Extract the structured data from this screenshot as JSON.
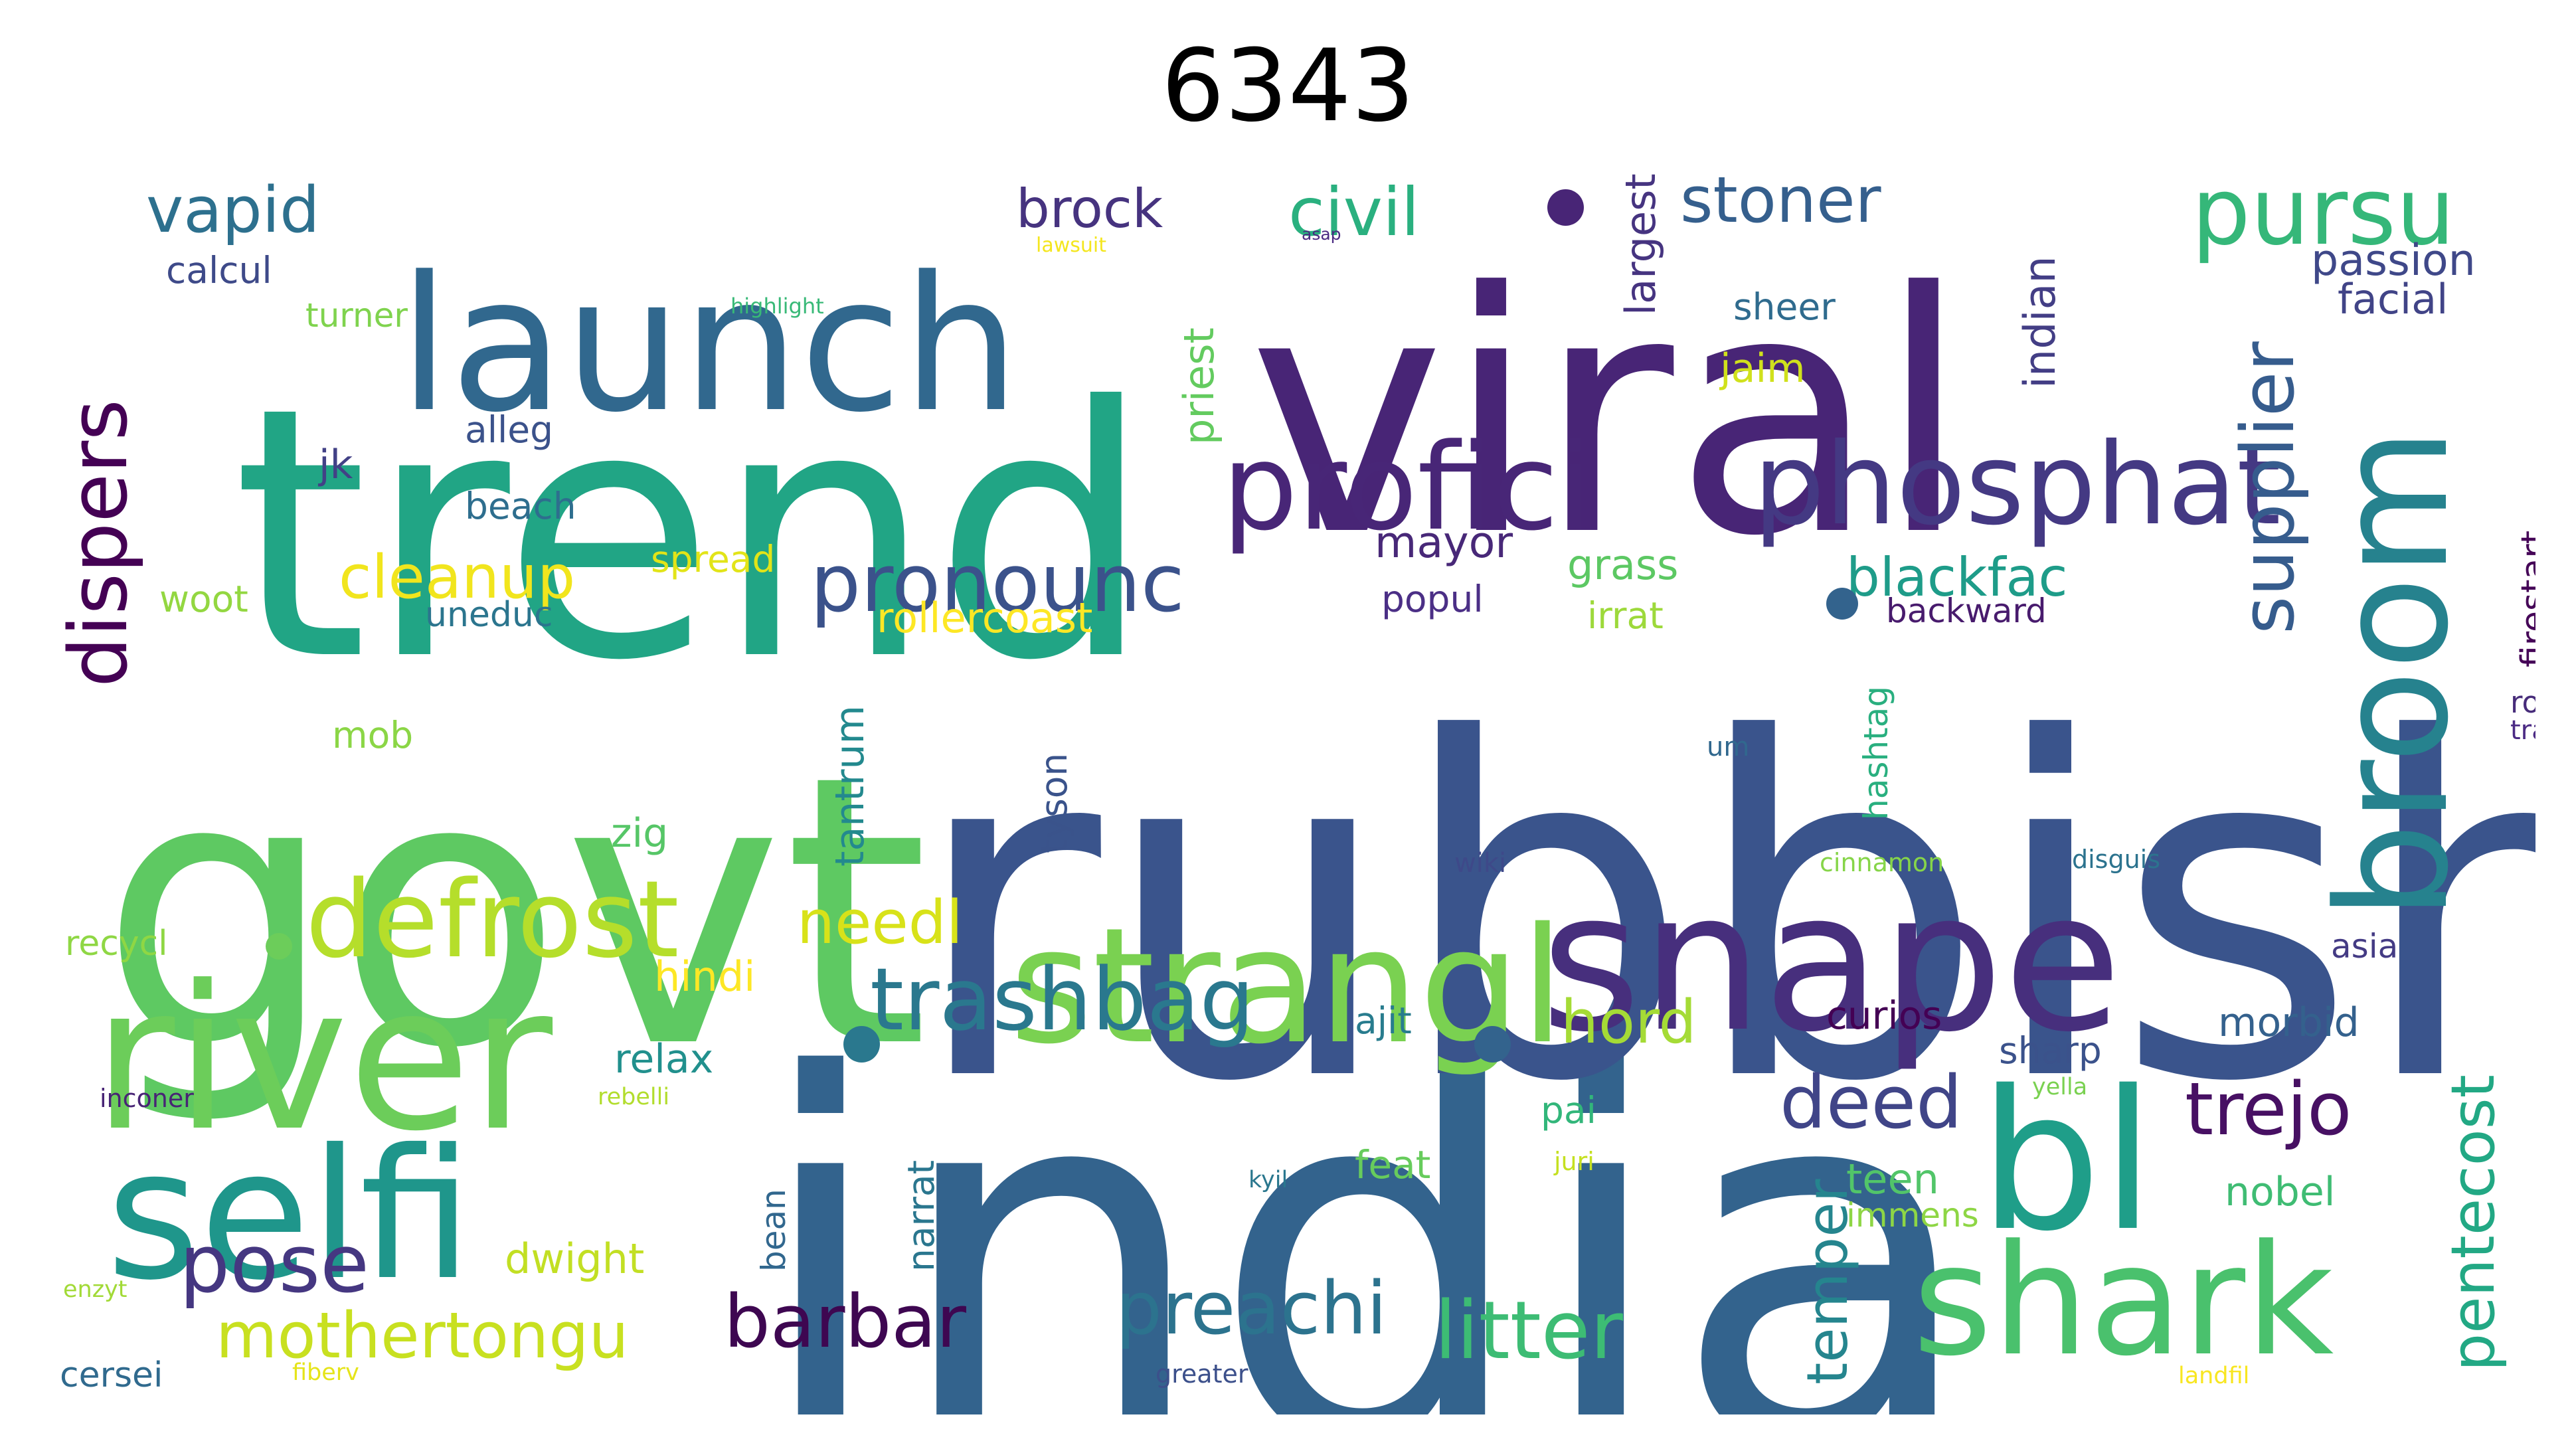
{
  "title": "6343",
  "colors": {
    "background": "#ffffff",
    "palette": "viridis"
  },
  "words": [
    {
      "text": "india",
      "color": "#33638d"
    },
    {
      "text": "rubbish",
      "color": "#3a548c"
    },
    {
      "text": "govt",
      "color": "#5ec962"
    },
    {
      "text": "trend",
      "color": "#21a585"
    },
    {
      "text": "viral",
      "color": "#482576"
    },
    {
      "text": "launch",
      "color": "#31688e"
    },
    {
      "text": "river",
      "color": "#6ccd5a"
    },
    {
      "text": "snape",
      "color": "#472f7d"
    },
    {
      "text": "strangl",
      "color": "#7ad151"
    },
    {
      "text": "selfi",
      "color": "#1f968b"
    },
    {
      "text": "bl",
      "color": "#1f9e89"
    },
    {
      "text": "shark",
      "color": "#4ac16d"
    },
    {
      "text": "broom",
      "color": "#26828e"
    },
    {
      "text": "profici",
      "color": "#482677"
    },
    {
      "text": "phosphat",
      "color": "#443983"
    },
    {
      "text": "defrost",
      "color": "#b5de2b"
    },
    {
      "text": "pursu",
      "color": "#35b779"
    },
    {
      "text": "dispers",
      "color": "#440154"
    },
    {
      "text": "pronounc",
      "color": "#3b528b"
    },
    {
      "text": "trashbag",
      "color": "#2a788e"
    },
    {
      "text": "pose",
      "color": "#453781"
    },
    {
      "text": "barbar",
      "color": "#3e0751"
    },
    {
      "text": "litter",
      "color": "#3dbc74"
    },
    {
      "text": "preachi",
      "color": "#2c738e"
    },
    {
      "text": "mothertongu",
      "color": "#c8e020"
    },
    {
      "text": "trejo",
      "color": "#471063"
    },
    {
      "text": "deed",
      "color": "#404588"
    },
    {
      "text": "pentecost",
      "color": "#22a884"
    },
    {
      "text": "supplier",
      "color": "#365c8d"
    },
    {
      "text": "vapid",
      "color": "#2d708e"
    },
    {
      "text": "civil",
      "color": "#2ab07f"
    },
    {
      "text": "stoner",
      "color": "#355f8d"
    },
    {
      "text": "brock",
      "color": "#46337f"
    },
    {
      "text": "cleanup",
      "color": "#f1e51d"
    },
    {
      "text": "needl",
      "color": "#d8e219"
    },
    {
      "text": "hord",
      "color": "#a5db36"
    },
    {
      "text": "temper",
      "color": "#25858e"
    },
    {
      "text": "blackfac",
      "color": "#1e9c89"
    },
    {
      "text": "passion",
      "color": "#3f4889"
    },
    {
      "text": "facial",
      "color": "#414487"
    },
    {
      "text": "rollercoast",
      "color": "#fde725"
    },
    {
      "text": "mayor",
      "color": "#482878"
    },
    {
      "text": "grass",
      "color": "#5cc863"
    },
    {
      "text": "calcul",
      "color": "#3e4a89"
    },
    {
      "text": "turner",
      "color": "#7fd34e"
    },
    {
      "text": "alleg",
      "color": "#3b528b"
    },
    {
      "text": "beach",
      "color": "#2e6e8e"
    },
    {
      "text": "jk",
      "color": "#424186"
    },
    {
      "text": "woot",
      "color": "#93d741"
    },
    {
      "text": "uneduc",
      "color": "#2b758e"
    },
    {
      "text": "spread",
      "color": "#e2e418"
    },
    {
      "text": "priest",
      "color": "#63cb5f"
    },
    {
      "text": "largest",
      "color": "#463480"
    },
    {
      "text": "indian",
      "color": "#433e85"
    },
    {
      "text": "sheer",
      "color": "#2f6b8e"
    },
    {
      "text": "jaim",
      "color": "#d0e11c"
    },
    {
      "text": "popul",
      "color": "#4b2f86"
    },
    {
      "text": "irrat",
      "color": "#9dd93b"
    },
    {
      "text": "backward",
      "color": "#481b6d"
    },
    {
      "text": "firestart",
      "color": "#450457"
    },
    {
      "text": "roman",
      "color": "#472c7a"
    },
    {
      "text": "trail",
      "color": "#4b2a84"
    },
    {
      "text": "tantrum",
      "color": "#23898e"
    },
    {
      "text": "tyson",
      "color": "#3a538b"
    },
    {
      "text": "hashtag",
      "color": "#29af7f"
    },
    {
      "text": "mob",
      "color": "#8bd646"
    },
    {
      "text": "zig",
      "color": "#56c667"
    },
    {
      "text": "hindi",
      "color": "#fde725"
    },
    {
      "text": "relax",
      "color": "#21908d"
    },
    {
      "text": "recycl",
      "color": "#8fd744"
    },
    {
      "text": "curios",
      "color": "#440154"
    },
    {
      "text": "sharp",
      "color": "#3b528b"
    },
    {
      "text": "morbid",
      "color": "#34618d"
    },
    {
      "text": "asia",
      "color": "#443b84"
    },
    {
      "text": "ajit",
      "color": "#287c8e"
    },
    {
      "text": "pai",
      "color": "#32b67a"
    },
    {
      "text": "feat",
      "color": "#67cc5c"
    },
    {
      "text": "teen",
      "color": "#52c569"
    },
    {
      "text": "immens",
      "color": "#8ed645"
    },
    {
      "text": "nobel",
      "color": "#3fbc73"
    },
    {
      "text": "dwight",
      "color": "#c2df23"
    },
    {
      "text": "bean",
      "color": "#31678e"
    },
    {
      "text": "narrat",
      "color": "#2a768e"
    },
    {
      "text": "cersei",
      "color": "#306a8e"
    },
    {
      "text": "inconer",
      "color": "#482475"
    },
    {
      "text": "rebelli",
      "color": "#b2dd2d"
    },
    {
      "text": "enzyt",
      "color": "#a2da37"
    },
    {
      "text": "fiberv",
      "color": "#e5e419"
    },
    {
      "text": "greater",
      "color": "#3c508b"
    },
    {
      "text": "landfil",
      "color": "#f8e621"
    },
    {
      "text": "yella",
      "color": "#7ad151"
    },
    {
      "text": "juri",
      "color": "#c5e021"
    },
    {
      "text": "kyil",
      "color": "#2a778e"
    },
    {
      "text": "wiki",
      "color": "#3e4989"
    },
    {
      "text": "cinnamon",
      "color": "#86d549"
    },
    {
      "text": "disguis",
      "color": "#2c738e"
    },
    {
      "text": "um",
      "color": "#31688e"
    },
    {
      "text": "lawsuit",
      "color": "#f4e61e"
    },
    {
      "text": "highlight",
      "color": "#38b977"
    },
    {
      "text": "asap",
      "color": "#4a2a82"
    }
  ]
}
